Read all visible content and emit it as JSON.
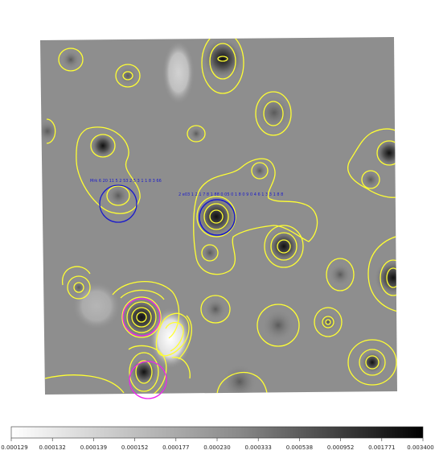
{
  "image": {
    "background_color": "#8e8e8e",
    "contour_color": "#ffff33",
    "region_colors": {
      "blue": "#1a1acc",
      "magenta": "#ee22ee"
    }
  },
  "regions": [
    {
      "color": "blue",
      "label": "Mrk 6 20 11 5 2 53 2 5 3 1 1 8 3 66"
    },
    {
      "color": "blue",
      "label": "2 e03 1 2 1 7 8 1 88 0 05 0 1 8 0 9 0 4 6 1 3 3 1 8 8"
    },
    {
      "color": "magenta",
      "label": ""
    },
    {
      "color": "magenta",
      "label": ""
    }
  ],
  "colorbar": {
    "ticks": [
      "0.000129",
      "0.000132",
      "0.000139",
      "0.000152",
      "0.000177",
      "0.000230",
      "0.000333",
      "0.000538",
      "0.000952",
      "0.001771",
      "0.003400"
    ]
  }
}
